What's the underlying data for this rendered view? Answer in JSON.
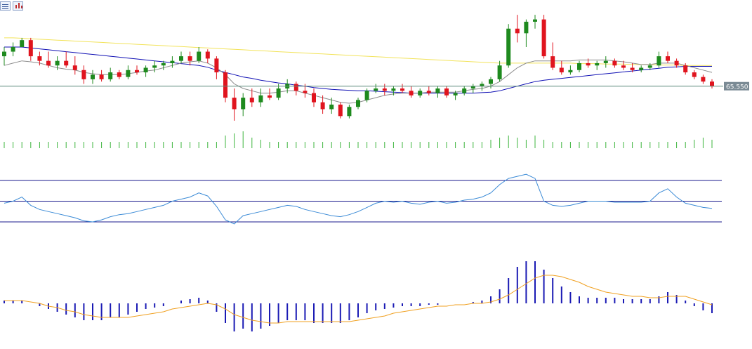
{
  "toolbar": {
    "icons": [
      "list-window-icon",
      "chart-window-icon"
    ]
  },
  "price_label": "65.550",
  "colors": {
    "up": "#1e8a1e",
    "down": "#e0141e",
    "ma_fast": "#8c8c8c",
    "ma_mid": "#1010b4",
    "ma_slow": "#f2e35a",
    "price_line": "#5a8a7a",
    "rsi": "#3a8ad6",
    "rsi_levels": "#1a1a8c",
    "macd_hist": "#1a1ab4",
    "macd_signal": "#f0a020",
    "volume": "#3cb43c"
  },
  "chart_data": [
    {
      "type": "candlestick",
      "name": "price",
      "last_price": 65.55,
      "candles": [
        [
          66.2,
          66.4,
          66.0,
          66.3
        ],
        [
          66.3,
          66.5,
          66.2,
          66.4
        ],
        [
          66.4,
          66.6,
          66.4,
          66.55
        ],
        [
          66.55,
          66.6,
          66.1,
          66.2
        ],
        [
          66.2,
          66.3,
          66.0,
          66.1
        ],
        [
          66.1,
          66.3,
          65.95,
          66.0
        ],
        [
          66.0,
          66.2,
          65.9,
          66.1
        ],
        [
          66.1,
          66.3,
          65.95,
          66.0
        ],
        [
          66.0,
          66.2,
          65.8,
          65.9
        ],
        [
          65.9,
          66.0,
          65.6,
          65.7
        ],
        [
          65.7,
          65.9,
          65.6,
          65.8
        ],
        [
          65.8,
          65.9,
          65.65,
          65.7
        ],
        [
          65.7,
          65.95,
          65.65,
          65.85
        ],
        [
          65.85,
          65.9,
          65.7,
          65.75
        ],
        [
          65.75,
          66.0,
          65.7,
          65.9
        ],
        [
          65.9,
          66.0,
          65.8,
          65.85
        ],
        [
          65.85,
          66.0,
          65.75,
          65.95
        ],
        [
          65.95,
          66.1,
          65.85,
          66.0
        ],
        [
          66.0,
          66.1,
          65.9,
          66.05
        ],
        [
          66.05,
          66.2,
          65.95,
          66.1
        ],
        [
          66.1,
          66.3,
          66.05,
          66.2
        ],
        [
          66.2,
          66.3,
          66.0,
          66.1
        ],
        [
          66.1,
          66.4,
          66.05,
          66.3
        ],
        [
          66.3,
          66.35,
          66.05,
          66.15
        ],
        [
          66.15,
          66.2,
          65.7,
          65.85
        ],
        [
          65.85,
          65.9,
          65.2,
          65.3
        ],
        [
          65.3,
          65.5,
          64.8,
          65.05
        ],
        [
          65.05,
          65.4,
          64.9,
          65.3
        ],
        [
          65.3,
          65.5,
          65.1,
          65.2
        ],
        [
          65.2,
          65.5,
          65.1,
          65.35
        ],
        [
          65.35,
          65.5,
          65.25,
          65.3
        ],
        [
          65.3,
          65.6,
          65.25,
          65.5
        ],
        [
          65.5,
          65.7,
          65.4,
          65.6
        ],
        [
          65.6,
          65.65,
          65.35,
          65.45
        ],
        [
          65.45,
          65.6,
          65.3,
          65.4
        ],
        [
          65.4,
          65.5,
          65.1,
          65.2
        ],
        [
          65.2,
          65.35,
          64.95,
          65.05
        ],
        [
          65.05,
          65.3,
          64.95,
          65.15
        ],
        [
          65.15,
          65.2,
          64.85,
          64.9
        ],
        [
          64.9,
          65.15,
          64.85,
          65.1
        ],
        [
          65.1,
          65.3,
          65.05,
          65.25
        ],
        [
          65.25,
          65.5,
          65.2,
          65.45
        ],
        [
          65.45,
          65.6,
          65.4,
          65.5
        ],
        [
          65.5,
          65.6,
          65.35,
          65.45
        ],
        [
          65.45,
          65.55,
          65.35,
          65.5
        ],
        [
          65.5,
          65.6,
          65.4,
          65.45
        ],
        [
          65.45,
          65.55,
          65.3,
          65.35
        ],
        [
          65.35,
          65.5,
          65.3,
          65.45
        ],
        [
          65.45,
          65.55,
          65.35,
          65.4
        ],
        [
          65.4,
          65.55,
          65.3,
          65.5
        ],
        [
          65.5,
          65.55,
          65.3,
          65.35
        ],
        [
          65.35,
          65.45,
          65.25,
          65.4
        ],
        [
          65.4,
          65.55,
          65.35,
          65.5
        ],
        [
          65.5,
          65.6,
          65.4,
          65.55
        ],
        [
          65.55,
          65.65,
          65.45,
          65.6
        ],
        [
          65.6,
          65.75,
          65.5,
          65.7
        ],
        [
          65.7,
          66.1,
          65.65,
          66.0
        ],
        [
          66.0,
          66.9,
          65.95,
          66.8
        ],
        [
          66.8,
          67.1,
          66.5,
          66.7
        ],
        [
          66.7,
          67.0,
          66.4,
          66.95
        ],
        [
          66.95,
          67.1,
          66.8,
          67.0
        ],
        [
          67.0,
          67.1,
          66.15,
          66.2
        ],
        [
          66.2,
          66.5,
          65.9,
          65.95
        ],
        [
          65.95,
          66.1,
          65.8,
          65.85
        ],
        [
          65.85,
          66.0,
          65.8,
          65.9
        ],
        [
          65.9,
          66.1,
          65.85,
          66.05
        ],
        [
          66.05,
          66.15,
          65.95,
          66.0
        ],
        [
          66.0,
          66.1,
          65.9,
          66.05
        ],
        [
          66.05,
          66.2,
          65.95,
          66.1
        ],
        [
          66.1,
          66.15,
          65.95,
          66.0
        ],
        [
          66.0,
          66.1,
          65.9,
          65.95
        ],
        [
          65.95,
          66.05,
          65.85,
          65.9
        ],
        [
          65.9,
          66.0,
          65.85,
          65.95
        ],
        [
          65.95,
          66.05,
          65.9,
          66.0
        ],
        [
          66.0,
          66.3,
          65.95,
          66.2
        ],
        [
          66.2,
          66.3,
          66.05,
          66.1
        ],
        [
          66.1,
          66.15,
          65.95,
          66.0
        ],
        [
          66.0,
          66.05,
          65.8,
          65.85
        ],
        [
          65.85,
          65.9,
          65.7,
          65.75
        ],
        [
          65.75,
          65.8,
          65.6,
          65.65
        ],
        [
          65.65,
          65.7,
          65.5,
          65.55
        ]
      ],
      "volume": [
        3,
        3,
        3,
        3,
        3,
        3,
        3,
        3,
        3,
        3,
        3,
        3,
        3,
        3,
        3,
        3,
        3,
        3,
        3,
        3,
        3,
        3,
        3,
        3,
        3,
        6,
        7,
        8,
        5,
        4,
        3,
        3,
        3,
        3,
        3,
        3,
        3,
        3,
        3,
        3,
        3,
        3,
        3,
        3,
        3,
        3,
        3,
        3,
        3,
        3,
        3,
        3,
        3,
        3,
        3,
        4,
        5,
        6,
        5,
        4,
        6,
        4,
        3,
        3,
        3,
        3,
        3,
        3,
        3,
        3,
        3,
        3,
        3,
        3,
        3,
        3,
        3,
        3,
        4,
        5,
        4
      ],
      "ma_fast": [
        66.0,
        66.05,
        66.1,
        66.08,
        66.05,
        66.0,
        65.95,
        65.92,
        65.9,
        65.85,
        65.82,
        65.8,
        65.8,
        65.8,
        65.82,
        65.85,
        65.88,
        65.9,
        65.95,
        66.0,
        66.05,
        66.08,
        66.1,
        66.05,
        65.95,
        65.8,
        65.6,
        65.5,
        65.45,
        65.4,
        65.4,
        65.42,
        65.45,
        65.45,
        65.4,
        65.35,
        65.3,
        65.25,
        65.2,
        65.18,
        65.2,
        65.25,
        65.3,
        65.35,
        65.38,
        65.4,
        65.4,
        65.4,
        65.42,
        65.42,
        65.42,
        65.42,
        65.45,
        65.48,
        65.5,
        65.55,
        65.65,
        65.8,
        65.95,
        66.05,
        66.1,
        66.1,
        66.1,
        66.1,
        66.1,
        66.12,
        66.12,
        66.12,
        66.12,
        66.1,
        66.08,
        66.05,
        66.02,
        66.02,
        66.05,
        66.05,
        66.05,
        66.0,
        65.95,
        65.9,
        65.85
      ],
      "ma_mid": [
        66.4,
        66.4,
        66.4,
        66.38,
        66.36,
        66.34,
        66.32,
        66.3,
        66.28,
        66.26,
        66.24,
        66.22,
        66.2,
        66.18,
        66.16,
        66.14,
        66.12,
        66.1,
        66.08,
        66.06,
        66.04,
        66.02,
        66.0,
        65.96,
        65.9,
        65.85,
        65.8,
        65.75,
        65.72,
        65.68,
        65.65,
        65.62,
        65.6,
        65.57,
        65.55,
        65.52,
        65.5,
        65.48,
        65.47,
        65.46,
        65.45,
        65.45,
        65.44,
        65.43,
        65.42,
        65.41,
        65.4,
        65.4,
        65.4,
        65.4,
        65.4,
        65.4,
        65.4,
        65.4,
        65.41,
        65.42,
        65.45,
        65.5,
        65.55,
        65.6,
        65.65,
        65.68,
        65.7,
        65.72,
        65.74,
        65.76,
        65.78,
        65.8,
        65.82,
        65.84,
        65.86,
        65.88,
        65.9,
        65.92,
        65.94,
        65.96,
        65.97,
        65.98,
        65.98,
        65.98,
        65.98
      ],
      "ma_slow": [
        66.6,
        66.6,
        66.59,
        66.58,
        66.57,
        66.56,
        66.55,
        66.54,
        66.53,
        66.52,
        66.51,
        66.5,
        66.49,
        66.48,
        66.47,
        66.46,
        66.45,
        66.44,
        66.43,
        66.42,
        66.41,
        66.4,
        66.39,
        66.38,
        66.37,
        66.36,
        66.35,
        66.34,
        66.33,
        66.32,
        66.31,
        66.3,
        66.29,
        66.28,
        66.27,
        66.26,
        66.25,
        66.24,
        66.23,
        66.22,
        66.21,
        66.2,
        66.19,
        66.18,
        66.17,
        66.16,
        66.15,
        66.14,
        66.13,
        66.12,
        66.11,
        66.1,
        66.09,
        66.08,
        66.07,
        66.06,
        66.05,
        66.05,
        66.05,
        66.05,
        66.05,
        66.05,
        66.05,
        66.05,
        66.05,
        66.04,
        66.04,
        66.04,
        66.03,
        66.03,
        66.03,
        66.02,
        66.02,
        66.02,
        66.01,
        66.01,
        66.01,
        66.0,
        66.0,
        66.0,
        66.0
      ]
    },
    {
      "type": "line",
      "name": "rsi",
      "levels": [
        70,
        50,
        30
      ],
      "values": [
        48,
        50,
        54,
        46,
        42,
        40,
        38,
        36,
        34,
        31,
        30,
        32,
        35,
        37,
        38,
        40,
        42,
        44,
        46,
        50,
        52,
        54,
        58,
        55,
        45,
        32,
        28,
        36,
        38,
        40,
        42,
        44,
        46,
        45,
        42,
        40,
        38,
        36,
        35,
        37,
        40,
        44,
        48,
        50,
        49,
        50,
        48,
        47,
        49,
        50,
        48,
        49,
        51,
        52,
        54,
        58,
        66,
        72,
        74,
        76,
        72,
        50,
        46,
        45,
        46,
        48,
        50,
        50,
        50,
        49,
        49,
        49,
        49,
        50,
        58,
        62,
        54,
        48,
        46,
        44,
        43
      ]
    },
    {
      "type": "bar",
      "name": "macd",
      "values": [
        0.02,
        0.02,
        0.02,
        0.0,
        -0.02,
        -0.04,
        -0.06,
        -0.08,
        -0.1,
        -0.12,
        -0.12,
        -0.12,
        -0.1,
        -0.1,
        -0.08,
        -0.06,
        -0.04,
        -0.03,
        -0.02,
        0.0,
        0.02,
        0.03,
        0.04,
        0.02,
        -0.06,
        -0.14,
        -0.2,
        -0.18,
        -0.2,
        -0.18,
        -0.16,
        -0.14,
        -0.12,
        -0.12,
        -0.12,
        -0.14,
        -0.14,
        -0.14,
        -0.14,
        -0.12,
        -0.1,
        -0.07,
        -0.05,
        -0.04,
        -0.03,
        -0.02,
        -0.02,
        -0.02,
        -0.01,
        -0.01,
        0.0,
        0.0,
        0.0,
        0.01,
        0.02,
        0.05,
        0.1,
        0.18,
        0.26,
        0.3,
        0.3,
        0.24,
        0.18,
        0.12,
        0.08,
        0.05,
        0.04,
        0.04,
        0.04,
        0.04,
        0.03,
        0.03,
        0.03,
        0.03,
        0.05,
        0.08,
        0.06,
        0.02,
        -0.02,
        -0.05,
        -0.07
      ],
      "signal": [
        0.02,
        0.02,
        0.02,
        0.01,
        0.0,
        -0.02,
        -0.03,
        -0.05,
        -0.06,
        -0.08,
        -0.09,
        -0.1,
        -0.1,
        -0.1,
        -0.1,
        -0.09,
        -0.08,
        -0.07,
        -0.06,
        -0.04,
        -0.03,
        -0.02,
        -0.01,
        0.0,
        -0.01,
        -0.04,
        -0.08,
        -0.1,
        -0.12,
        -0.13,
        -0.14,
        -0.14,
        -0.13,
        -0.13,
        -0.13,
        -0.13,
        -0.13,
        -0.13,
        -0.13,
        -0.13,
        -0.12,
        -0.11,
        -0.1,
        -0.09,
        -0.07,
        -0.06,
        -0.05,
        -0.04,
        -0.03,
        -0.02,
        -0.02,
        -0.01,
        -0.01,
        0.0,
        0.0,
        0.01,
        0.03,
        0.06,
        0.1,
        0.14,
        0.18,
        0.2,
        0.2,
        0.19,
        0.17,
        0.15,
        0.12,
        0.1,
        0.08,
        0.07,
        0.06,
        0.05,
        0.05,
        0.04,
        0.04,
        0.05,
        0.05,
        0.05,
        0.03,
        0.01,
        -0.01
      ]
    }
  ]
}
